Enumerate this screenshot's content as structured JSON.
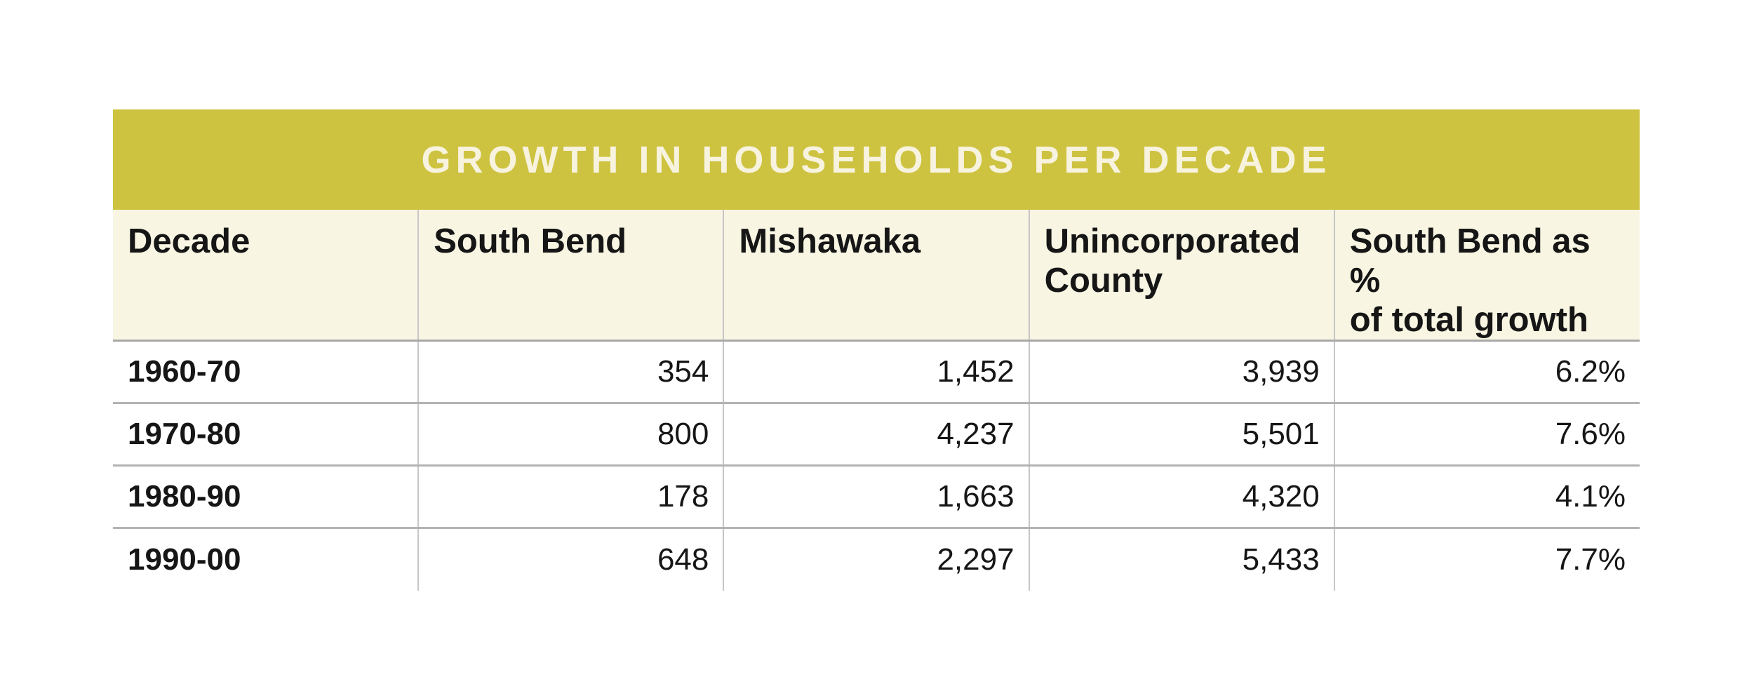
{
  "title": "GROWTH IN HOUSEHOLDS PER DECADE",
  "columns": [
    {
      "label": "Decade"
    },
    {
      "label": "South Bend"
    },
    {
      "label": "Mishawaka"
    },
    {
      "label": "Unincorporated\nCounty"
    },
    {
      "label": "South Bend as %\nof total growth"
    }
  ],
  "rows": [
    {
      "decade": "1960-70",
      "south_bend": "354",
      "mishawaka": "1,452",
      "unincorporated_county": "3,939",
      "south_bend_pct_of_total_growth": "6.2%"
    },
    {
      "decade": "1970-80",
      "south_bend": "800",
      "mishawaka": "4,237",
      "unincorporated_county": "5,501",
      "south_bend_pct_of_total_growth": "7.6%"
    },
    {
      "decade": "1980-90",
      "south_bend": "178",
      "mishawaka": "1,663",
      "unincorporated_county": "4,320",
      "south_bend_pct_of_total_growth": "4.1%"
    },
    {
      "decade": "1990-00",
      "south_bend": "648",
      "mishawaka": "2,297",
      "unincorporated_county": "5,433",
      "south_bend_pct_of_total_growth": "7.7%"
    }
  ],
  "colors": {
    "title_bar_background": "#cec340",
    "title_text": "#f7f3df",
    "header_row_background": "#f8f5e3",
    "header_divider": "#a9a9a9",
    "row_divider": "#b3b3b3",
    "column_divider": "#c6c6c6",
    "body_text": "#161616",
    "page_background": "#ffffff"
  },
  "chart_data": {
    "type": "table",
    "title": "GROWTH IN HOUSEHOLDS PER DECADE",
    "columns": [
      "Decade",
      "South Bend",
      "Mishawaka",
      "Unincorporated County",
      "South Bend as % of total growth"
    ],
    "rows": [
      [
        "1960-70",
        354,
        1452,
        3939,
        "6.2%"
      ],
      [
        "1970-80",
        800,
        4237,
        5501,
        "7.6%"
      ],
      [
        "1980-90",
        178,
        1663,
        4320,
        "4.1%"
      ],
      [
        "1990-00",
        648,
        2297,
        5433,
        "7.7%"
      ]
    ],
    "layout_hints": {
      "title_position": "top-banner-centered",
      "decade_column_alignment": "left",
      "numeric_columns_alignment": "right",
      "header_wrap_lines": {
        "Unincorporated County": 2,
        "South Bend as % of total growth": 2
      },
      "grid": "horizontal-row-separators-and-vertical-column-separators",
      "outer_border": "none"
    }
  }
}
